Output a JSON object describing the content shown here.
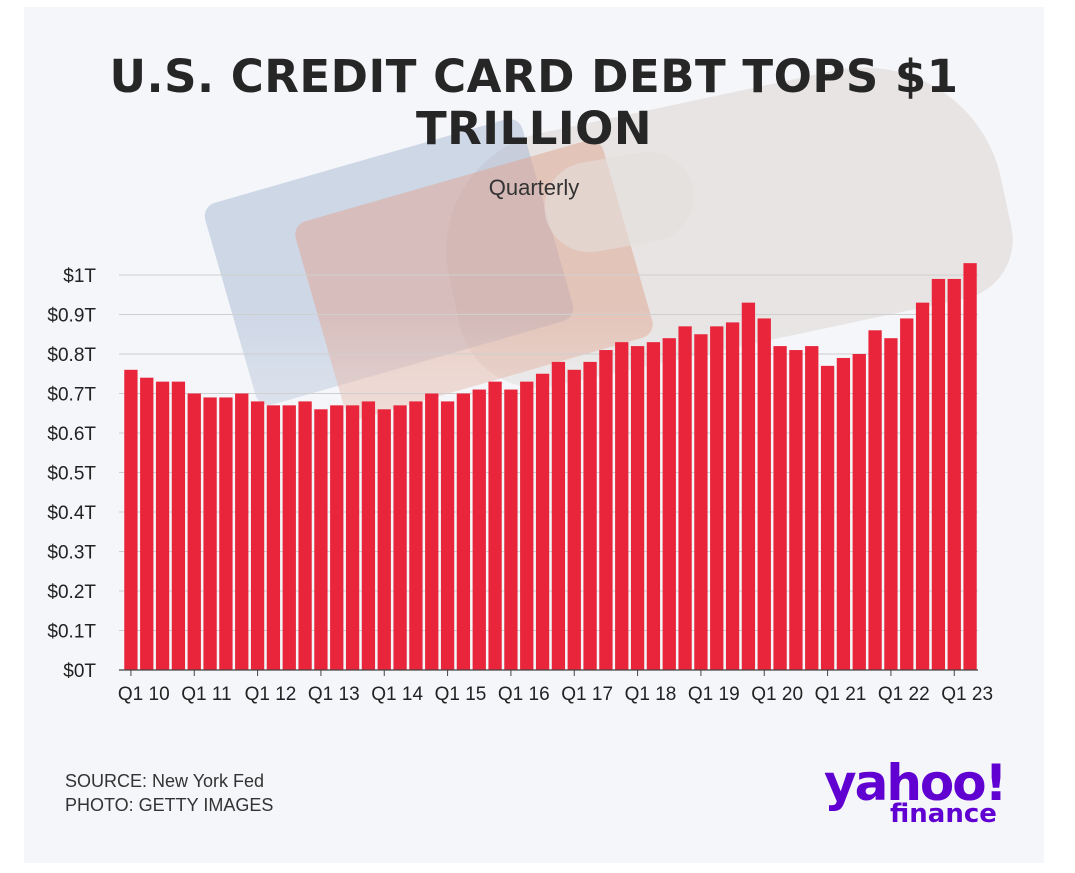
{
  "chart_data": {
    "type": "bar",
    "title": "U.S. CREDIT CARD DEBT TOPS $1 TRILLION",
    "subtitle": "Quarterly",
    "xlabel": "",
    "ylabel": "",
    "ylim": [
      0,
      1.0
    ],
    "yticks": [
      {
        "value": 0,
        "label": "$0T"
      },
      {
        "value": 0.1,
        "label": "$0.1T"
      },
      {
        "value": 0.2,
        "label": "$0.2T"
      },
      {
        "value": 0.3,
        "label": "$0.3T"
      },
      {
        "value": 0.4,
        "label": "$0.4T"
      },
      {
        "value": 0.5,
        "label": "$0.5T"
      },
      {
        "value": 0.6,
        "label": "$0.6T"
      },
      {
        "value": 0.7,
        "label": "$0.7T"
      },
      {
        "value": 0.8,
        "label": "$0.8T"
      },
      {
        "value": 0.9,
        "label": "$0.9T"
      },
      {
        "value": 1.0,
        "label": "$1T"
      }
    ],
    "xtick_labels": [
      "Q1 10",
      "Q1 11",
      "Q1 12",
      "Q1 13",
      "Q1 14",
      "Q1 15",
      "Q1 16",
      "Q1 17",
      "Q1 18",
      "Q1 19",
      "Q1 20",
      "Q1 21",
      "Q1 22",
      "Q1 23"
    ],
    "categories": [
      "Q1 10",
      "Q2 10",
      "Q3 10",
      "Q4 10",
      "Q1 11",
      "Q2 11",
      "Q3 11",
      "Q4 11",
      "Q1 12",
      "Q2 12",
      "Q3 12",
      "Q4 12",
      "Q1 13",
      "Q2 13",
      "Q3 13",
      "Q4 13",
      "Q1 14",
      "Q2 14",
      "Q3 14",
      "Q4 14",
      "Q1 15",
      "Q2 15",
      "Q3 15",
      "Q4 15",
      "Q1 16",
      "Q2 16",
      "Q3 16",
      "Q4 16",
      "Q1 17",
      "Q2 17",
      "Q3 17",
      "Q4 17",
      "Q1 18",
      "Q2 18",
      "Q3 18",
      "Q4 18",
      "Q1 19",
      "Q2 19",
      "Q3 19",
      "Q4 19",
      "Q1 20",
      "Q2 20",
      "Q3 20",
      "Q4 20",
      "Q1 21",
      "Q2 21",
      "Q3 21",
      "Q4 21",
      "Q1 22",
      "Q2 22",
      "Q3 22",
      "Q4 22",
      "Q1 23",
      "Q2 23"
    ],
    "values": [
      0.76,
      0.74,
      0.73,
      0.73,
      0.7,
      0.69,
      0.69,
      0.7,
      0.68,
      0.67,
      0.67,
      0.68,
      0.66,
      0.67,
      0.67,
      0.68,
      0.66,
      0.67,
      0.68,
      0.7,
      0.68,
      0.7,
      0.71,
      0.73,
      0.71,
      0.73,
      0.75,
      0.78,
      0.76,
      0.78,
      0.81,
      0.83,
      0.82,
      0.83,
      0.84,
      0.87,
      0.85,
      0.87,
      0.88,
      0.93,
      0.89,
      0.82,
      0.81,
      0.82,
      0.77,
      0.79,
      0.8,
      0.86,
      0.84,
      0.89,
      0.93,
      0.99,
      0.99,
      1.03
    ],
    "grid": true,
    "legend": "none",
    "colors": {
      "bar": "#e8253a",
      "grid": "#cfcfcf",
      "axis": "#444444"
    }
  },
  "footer": {
    "source": "SOURCE: New York Fed",
    "photo": "PHOTO: GETTY IMAGES"
  },
  "logo": {
    "word": "yahoo!",
    "sub": "finance",
    "color": "#6001d2"
  }
}
